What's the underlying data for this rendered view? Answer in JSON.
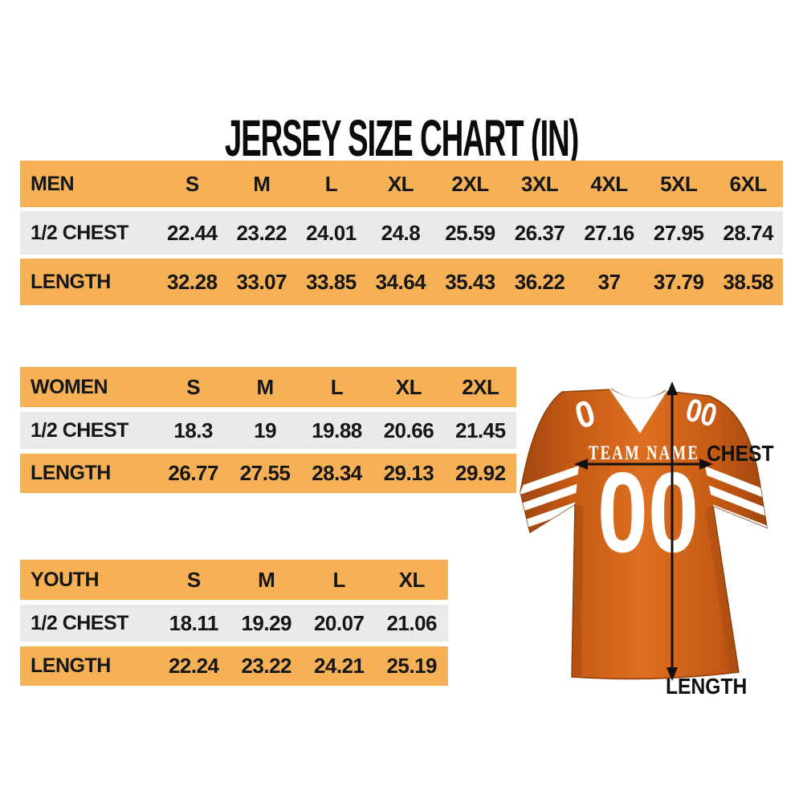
{
  "title": "JERSEY SIZE CHART (IN)",
  "tables": [
    {
      "id": "men",
      "header": [
        "MEN",
        "S",
        "M",
        "L",
        "XL",
        "2XL",
        "3XL",
        "4XL",
        "5XL",
        "6XL"
      ],
      "rows": [
        [
          "1/2 CHEST",
          "22.44",
          "23.22",
          "24.01",
          "24.8",
          "25.59",
          "26.37",
          "27.16",
          "27.95",
          "28.74"
        ],
        [
          "LENGTH",
          "32.28",
          "33.07",
          "33.85",
          "34.64",
          "35.43",
          "36.22",
          "37",
          "37.79",
          "38.58"
        ]
      ]
    },
    {
      "id": "women",
      "header": [
        "WOMEN",
        "S",
        "M",
        "L",
        "XL",
        "2XL"
      ],
      "rows": [
        [
          "1/2 CHEST",
          "18.3",
          "19",
          "19.88",
          "20.66",
          "21.45"
        ],
        [
          "LENGTH",
          "26.77",
          "27.55",
          "28.34",
          "29.13",
          "29.92"
        ]
      ]
    },
    {
      "id": "youth",
      "header": [
        "YOUTH",
        "S",
        "M",
        "L",
        "XL"
      ],
      "rows": [
        [
          "1/2 CHEST",
          "18.11",
          "19.29",
          "20.07",
          "21.06"
        ],
        [
          "LENGTH",
          "22.24",
          "23.22",
          "24.21",
          "25.19"
        ]
      ]
    }
  ],
  "jersey": {
    "team_name": "TEAM NAME",
    "chest_number": "00",
    "shoulder_number_left": "0",
    "shoulder_number_right": "00",
    "chest_label": "CHEST",
    "length_label": "LENGTH"
  },
  "colors": {
    "row_orange": "#F6B156",
    "row_gray": "#EAEAE8",
    "text": "#161616",
    "arrow_black": "#111111",
    "jersey_orange": "#C75B15",
    "jersey_orange_light": "#DD6F20",
    "jersey_orange_dark": "#A04710",
    "white": "#FFFFFF"
  }
}
